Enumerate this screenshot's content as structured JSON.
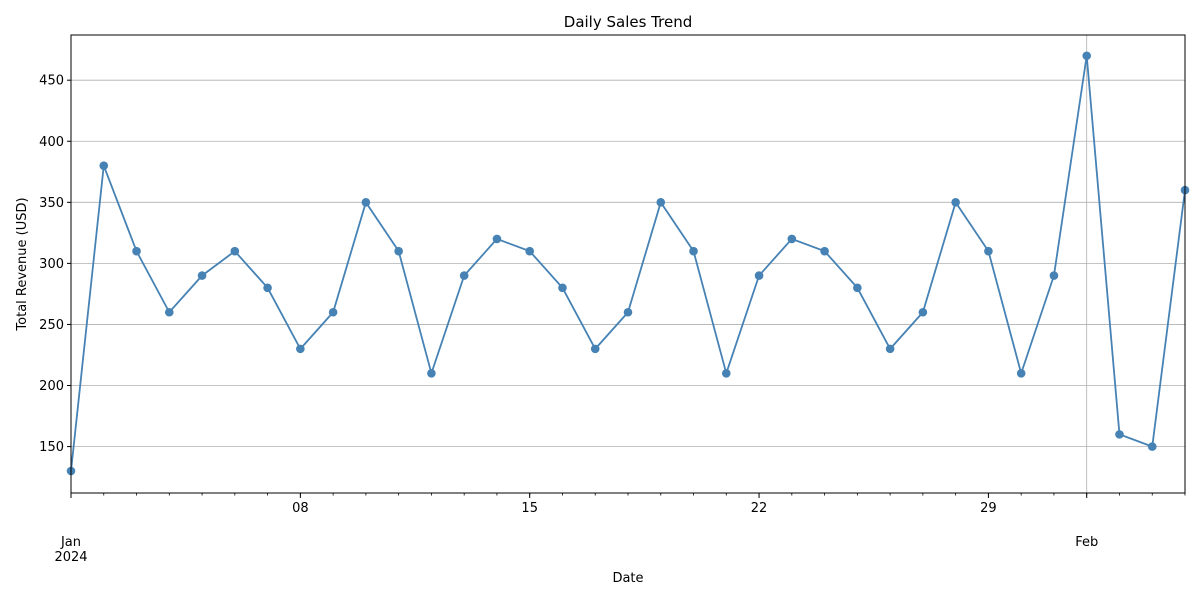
{
  "chart_data": {
    "type": "line",
    "title": "Daily Sales Trend",
    "xlabel": "Date",
    "ylabel": "Total Revenue (USD)",
    "x": [
      "2024-01-01",
      "2024-01-02",
      "2024-01-03",
      "2024-01-04",
      "2024-01-05",
      "2024-01-06",
      "2024-01-07",
      "2024-01-08",
      "2024-01-09",
      "2024-01-10",
      "2024-01-11",
      "2024-01-12",
      "2024-01-13",
      "2024-01-14",
      "2024-01-15",
      "2024-01-16",
      "2024-01-17",
      "2024-01-18",
      "2024-01-19",
      "2024-01-20",
      "2024-01-21",
      "2024-01-22",
      "2024-01-23",
      "2024-01-24",
      "2024-01-25",
      "2024-01-26",
      "2024-01-27",
      "2024-01-28",
      "2024-01-29",
      "2024-01-30",
      "2024-01-31",
      "2024-02-01",
      "2024-02-02",
      "2024-02-03",
      "2024-02-04"
    ],
    "series": [
      {
        "values": [
          130,
          380,
          310,
          260,
          290,
          310,
          280,
          230,
          260,
          350,
          310,
          210,
          290,
          320,
          310,
          280,
          230,
          260,
          350,
          310,
          210,
          290,
          320,
          310,
          280,
          230,
          260,
          350,
          310,
          210,
          290,
          470,
          160,
          150,
          360
        ],
        "color": "#4682b4"
      }
    ],
    "ylim": [
      112,
      487
    ],
    "xlim": [
      "2024-01-01",
      "2024-02-04"
    ],
    "y_ticks": [
      150,
      200,
      250,
      300,
      350,
      400,
      450
    ],
    "y_tick_labels": [
      "150",
      "200",
      "250",
      "300",
      "350",
      "400",
      "450"
    ],
    "x_major_ticks": [
      {
        "date": "2024-01-01",
        "label": "Jan\n2024"
      },
      {
        "date": "2024-01-08",
        "label": "08"
      },
      {
        "date": "2024-01-15",
        "label": "15"
      },
      {
        "date": "2024-01-22",
        "label": "22"
      },
      {
        "date": "2024-01-29",
        "label": "29"
      },
      {
        "date": "2024-02-01",
        "label": "Feb"
      }
    ],
    "grid": "y-major, plus x at month start",
    "grid_color": "#b0b0b0"
  }
}
